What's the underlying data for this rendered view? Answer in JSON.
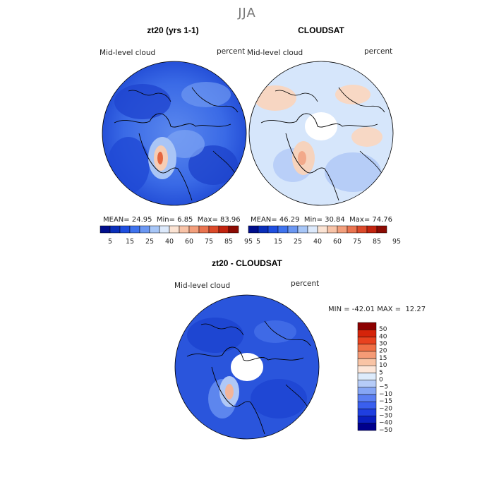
{
  "title": "JJA",
  "panels": [
    {
      "title": "zt20 (yrs 1-1)",
      "var_label": "Mid-level cloud",
      "units": "percent",
      "stats": {
        "mean": "24.95",
        "min": "6.85",
        "max": "83.96"
      }
    },
    {
      "title": "CLOUDSAT",
      "var_label": "Mid-level cloud",
      "units": "percent",
      "stats": {
        "mean": "46.29",
        "min": "30.84",
        "max": "74.76"
      }
    },
    {
      "title": "zt20 - CLOUDSAT",
      "var_label": "Mid-level cloud",
      "units": "percent",
      "range_text": "MIN = -42.01 MAX =  12.27"
    }
  ],
  "stat_labels": {
    "mean": "MEAN=",
    "min": "Min=",
    "max": "Max="
  },
  "colorbar_top": {
    "colors": [
      "#000e8c",
      "#0a2fba",
      "#1f4fe0",
      "#3f73ee",
      "#6b97f2",
      "#a7c6f7",
      "#dce9fb",
      "#fbe3d3",
      "#f8c3a7",
      "#f39f7c",
      "#ea7450",
      "#dc4a2a",
      "#c2240f",
      "#8c0b03"
    ],
    "tick_labels": [
      "5",
      "15",
      "25",
      "40",
      "60",
      "75",
      "85",
      "95"
    ]
  },
  "colorbar_diff": {
    "colors": [
      "#00008c",
      "#0a1fbf",
      "#1f3fe0",
      "#3a5fee",
      "#5b7ff2",
      "#86a6f5",
      "#b6ccf8",
      "#ddebfb",
      "#fde6d8",
      "#f9c4a5",
      "#f59b76",
      "#ef6f45",
      "#e8421f",
      "#d5240a",
      "#8c0000"
    ],
    "tick_labels": [
      "50",
      "40",
      "30",
      "20",
      "15",
      "10",
      "5",
      "0",
      "−5",
      "−10",
      "−15",
      "−20",
      "−30",
      "−40",
      "−50"
    ]
  }
}
